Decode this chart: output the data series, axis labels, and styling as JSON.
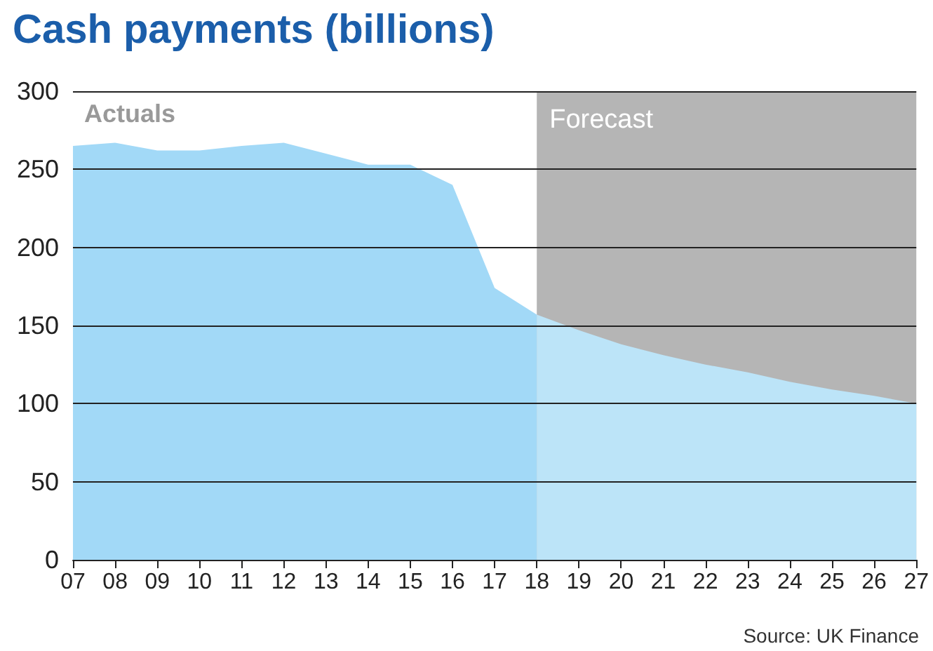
{
  "chart_data": {
    "type": "area",
    "title": "Cash payments (billions)",
    "categories": [
      "07",
      "08",
      "09",
      "10",
      "11",
      "12",
      "13",
      "14",
      "15",
      "16",
      "17",
      "18",
      "19",
      "20",
      "21",
      "22",
      "23",
      "24",
      "25",
      "26",
      "27"
    ],
    "series": [
      {
        "color": "#a2d9f7",
        "values": [
          265,
          267,
          262,
          262,
          265,
          267,
          260,
          253,
          253,
          240,
          174,
          157,
          null,
          null,
          null,
          null,
          null,
          null,
          null,
          null,
          null
        ]
      },
      {
        "color": "#bce4f8",
        "values": [
          null,
          null,
          null,
          null,
          null,
          null,
          null,
          null,
          null,
          null,
          null,
          157,
          147,
          138,
          131,
          125,
          120,
          114,
          109,
          105,
          100
        ]
      }
    ],
    "ylim": [
      0,
      300
    ],
    "yticks": [
      0,
      50,
      100,
      150,
      200,
      250,
      300
    ],
    "grid": "y",
    "bands": [
      {
        "axis": "x",
        "from": "18",
        "to": "27",
        "label": "Forecast",
        "color": "#b5b5b5"
      }
    ],
    "annotations": [
      "Actuals",
      "Source: UK Finance"
    ]
  }
}
